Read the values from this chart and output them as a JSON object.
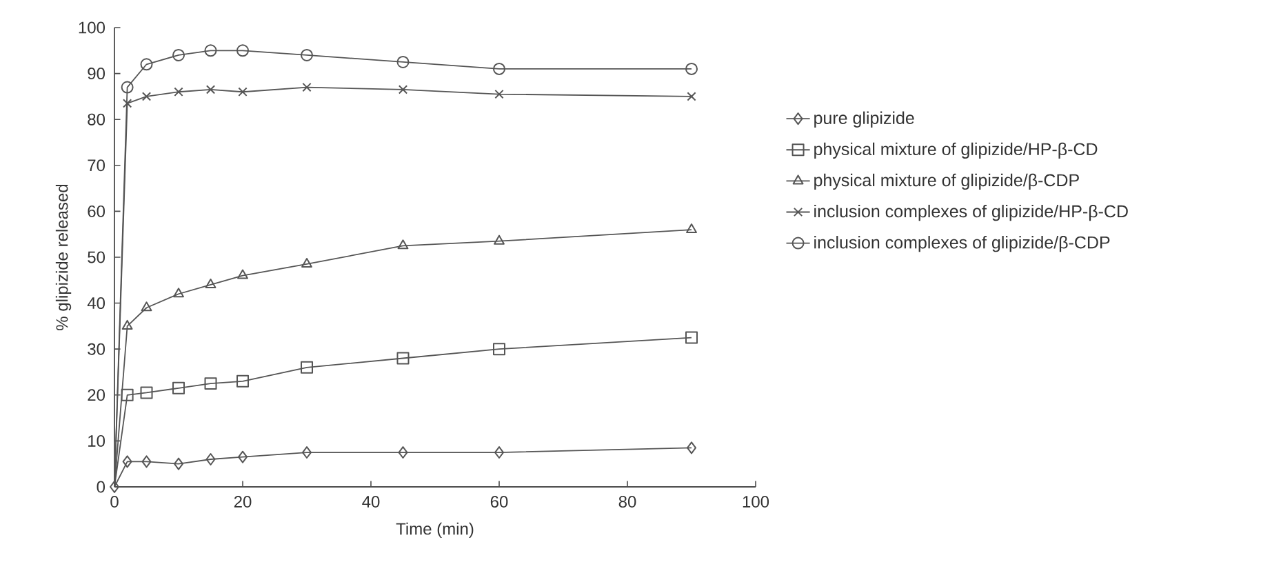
{
  "chart_data": {
    "type": "line",
    "xlabel": "Time (min)",
    "ylabel": "% glipizide released",
    "x": [
      0,
      2,
      5,
      10,
      15,
      20,
      30,
      45,
      60,
      90
    ],
    "xlim": [
      0,
      100
    ],
    "ylim": [
      0,
      100
    ],
    "xticks": [
      0,
      20,
      40,
      60,
      80,
      100
    ],
    "yticks": [
      0,
      10,
      20,
      30,
      40,
      50,
      60,
      70,
      80,
      90,
      100
    ],
    "grid": false,
    "legend": "right",
    "line_style": "solid",
    "series": [
      {
        "name": "pure glipizide",
        "color": "#555555",
        "marker": "diamond",
        "values": [
          0,
          5.5,
          5.5,
          5,
          6,
          6.5,
          7.5,
          7.5,
          7.5,
          8.5
        ]
      },
      {
        "name": "physical mixture of glipizide/HP-β-CD",
        "color": "#555555",
        "marker": "square",
        "values": [
          0,
          20,
          20.5,
          21.5,
          22.5,
          23,
          26,
          28,
          30,
          32.5
        ]
      },
      {
        "name": "physical mixture of glipizide/β-CDP",
        "color": "#555555",
        "marker": "triangle",
        "values": [
          0,
          35,
          39,
          42,
          44,
          46,
          48.5,
          52.5,
          53.5,
          56
        ]
      },
      {
        "name": "inclusion complexes of glipizide/HP-β-CD",
        "color": "#555555",
        "marker": "cross",
        "values": [
          0,
          83.5,
          85,
          86,
          86.5,
          86,
          87,
          86.5,
          85.5,
          85
        ]
      },
      {
        "name": "inclusion complexes of glipizide/β-CDP",
        "color": "#555555",
        "marker": "circle",
        "values": [
          0,
          87,
          92,
          94,
          95,
          95,
          94,
          92.5,
          91,
          91
        ]
      }
    ]
  }
}
